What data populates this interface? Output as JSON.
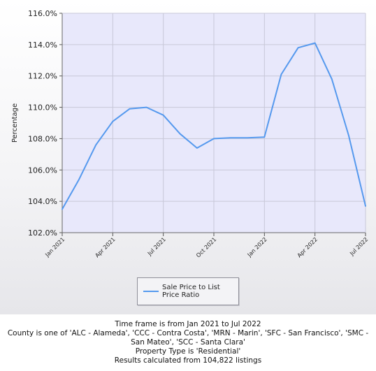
{
  "chart_data": {
    "type": "line",
    "ylabel": "Percentage",
    "xlabel": "",
    "ylim": [
      102,
      116
    ],
    "y_ticks": [
      "102.0%",
      "104.0%",
      "106.0%",
      "108.0%",
      "110.0%",
      "112.0%",
      "114.0%",
      "116.0%"
    ],
    "x_tick_labels": [
      "Jan 2021",
      "Apr 2021",
      "Jul 2021",
      "Oct 2021",
      "Jan 2022",
      "Apr 2022",
      "Jul 2022"
    ],
    "x": [
      "Jan 2021",
      "Feb 2021",
      "Mar 2021",
      "Apr 2021",
      "May 2021",
      "Jun 2021",
      "Jul 2021",
      "Aug 2021",
      "Sep 2021",
      "Oct 2021",
      "Nov 2021",
      "Dec 2021",
      "Jan 2022",
      "Feb 2022",
      "Mar 2022",
      "Apr 2022",
      "May 2022",
      "Jun 2022",
      "Jul 2022"
    ],
    "series": [
      {
        "name": "Sale Price to List Price Ratio",
        "color": "#5599ee",
        "values": [
          103.5,
          105.4,
          107.6,
          109.1,
          109.9,
          110.0,
          109.5,
          108.3,
          107.4,
          108.0,
          108.05,
          108.05,
          108.1,
          112.1,
          113.8,
          114.1,
          111.8,
          108.2,
          103.7
        ]
      }
    ],
    "grid": true,
    "legend": "bottom",
    "plot_background": "#e8e8fb"
  },
  "legend": {
    "label": "Sale Price to List Price Ratio"
  },
  "captions": {
    "time_frame": "Time frame is from Jan 2021 to Jul 2022",
    "county": "County is one of 'ALC - Alameda', 'CCC - Contra Costa', 'MRN - Marin', 'SFC - San Francisco', 'SMC - San Mateo', 'SCC - Santa Clara'",
    "property_type": "Property Type is 'Residential'",
    "results": "Results calculated from 104,822 listings"
  }
}
